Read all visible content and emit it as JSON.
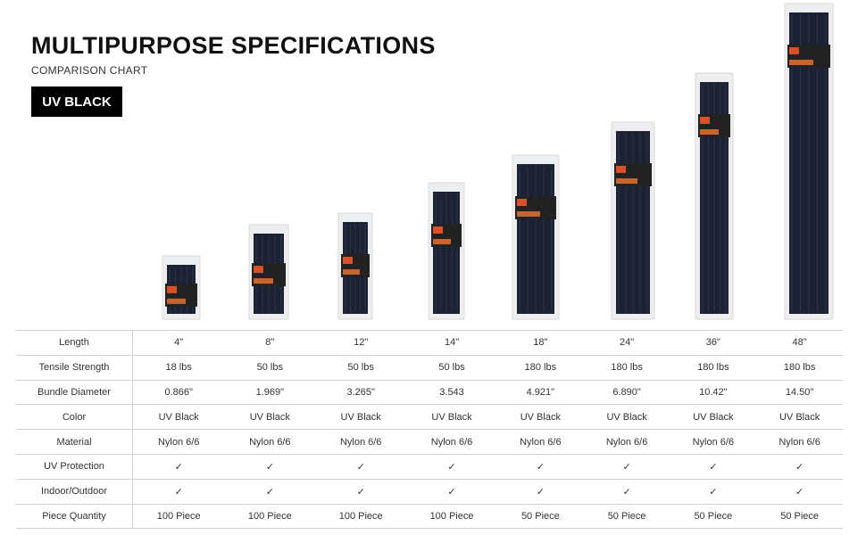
{
  "header": {
    "title": "MULTIPURPOSE SPECIFICATIONS",
    "subtitle": "COMPARISON CHART",
    "badge": "UV BLACK"
  },
  "table": {
    "rows": [
      {
        "label": "Length",
        "cells": [
          "4\"",
          "8\"",
          "12\"",
          "14\"",
          "18\"",
          "24\"",
          "36\"",
          "48\""
        ]
      },
      {
        "label": "Tensile Strength",
        "cells": [
          "18 lbs",
          "50 lbs",
          "50 lbs",
          "50 lbs",
          "180 lbs",
          "180 lbs",
          "180 lbs",
          "180 lbs"
        ]
      },
      {
        "label": "Bundle Diameter",
        "cells": [
          "0.866\"",
          "1.969\"",
          "3.265\"",
          "3.543",
          "4.921\"",
          "6.890\"",
          "10.42\"",
          "14.50\""
        ]
      },
      {
        "label": "Color",
        "cells": [
          "UV Black",
          "UV Black",
          "UV Black",
          "UV Black",
          "UV Black",
          "UV Black",
          "UV Black",
          "UV Black"
        ]
      },
      {
        "label": "Material",
        "cells": [
          "Nylon 6/6",
          "Nylon 6/6",
          "Nylon 6/6",
          "Nylon 6/6",
          "Nylon 6/6",
          "Nylon 6/6",
          "Nylon 6/6",
          "Nylon 6/6"
        ]
      },
      {
        "label": "UV Protection",
        "cells": [
          "✓",
          "✓",
          "✓",
          "✓",
          "✓",
          "✓",
          "✓",
          "✓"
        ]
      },
      {
        "label": "Indoor/Outdoor",
        "cells": [
          "✓",
          "✓",
          "✓",
          "✓",
          "✓",
          "✓",
          "✓",
          "✓"
        ]
      },
      {
        "label": "Piece Quantity",
        "cells": [
          "100 Piece",
          "100 Piece",
          "100 Piece",
          "100 Piece",
          "50 Piece",
          "50 Piece",
          "50 Piece",
          "50 Piece"
        ]
      }
    ]
  }
}
